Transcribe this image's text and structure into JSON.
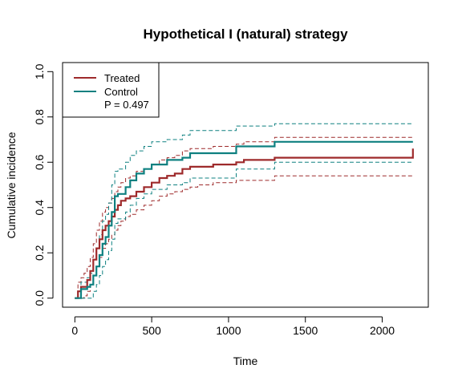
{
  "colors": {
    "treated": "#9E2A2B",
    "control": "#0E8080",
    "axis": "#000000"
  },
  "chart_data": {
    "type": "line",
    "title": "Hypothetical I (natural) strategy",
    "xlabel": "Time",
    "ylabel": "Cumulative incidence",
    "xlim": [
      -80,
      2300
    ],
    "ylim": [
      -0.04,
      1.04
    ],
    "xticks": [
      0,
      500,
      1000,
      1500,
      2000
    ],
    "xtick_labels": [
      "0",
      "500",
      "1000",
      "1500",
      "2000"
    ],
    "yticks": [
      0.0,
      0.2,
      0.4,
      0.6,
      0.8,
      1.0
    ],
    "ytick_labels": [
      "0.0",
      "0.2",
      "0.4",
      "0.6",
      "0.8",
      "1.0"
    ],
    "legend": {
      "position": "top-left",
      "entries": [
        {
          "label": "Treated",
          "series": "treated"
        },
        {
          "label": "Control",
          "series": "control"
        }
      ],
      "annotation": "P = 0.497"
    },
    "series": [
      {
        "name": "Treated",
        "key": "treated",
        "style": "step",
        "ci_style": "dashed",
        "x": [
          0,
          20,
          40,
          60,
          80,
          100,
          120,
          140,
          160,
          180,
          200,
          220,
          240,
          260,
          280,
          300,
          330,
          360,
          400,
          450,
          500,
          550,
          600,
          650,
          700,
          750,
          800,
          900,
          1000,
          1050,
          1100,
          1200,
          1300,
          1500,
          1800,
          2000,
          2200
        ],
        "y": [
          0.0,
          0.03,
          0.05,
          0.05,
          0.08,
          0.12,
          0.17,
          0.22,
          0.26,
          0.3,
          0.32,
          0.34,
          0.36,
          0.39,
          0.41,
          0.43,
          0.44,
          0.45,
          0.47,
          0.49,
          0.51,
          0.53,
          0.54,
          0.55,
          0.57,
          0.58,
          0.58,
          0.59,
          0.59,
          0.6,
          0.61,
          0.61,
          0.62,
          0.62,
          0.62,
          0.62,
          0.66
        ],
        "lower": [
          0.0,
          0.0,
          0.0,
          0.01,
          0.03,
          0.06,
          0.1,
          0.14,
          0.18,
          0.22,
          0.24,
          0.26,
          0.28,
          0.3,
          0.32,
          0.34,
          0.36,
          0.37,
          0.39,
          0.41,
          0.43,
          0.45,
          0.46,
          0.47,
          0.48,
          0.49,
          0.5,
          0.51,
          0.51,
          0.52,
          0.52,
          0.52,
          0.54,
          0.54,
          0.54,
          0.54,
          0.54
        ],
        "upper": [
          0.0,
          0.07,
          0.09,
          0.11,
          0.14,
          0.18,
          0.24,
          0.3,
          0.34,
          0.38,
          0.4,
          0.42,
          0.44,
          0.47,
          0.49,
          0.51,
          0.53,
          0.54,
          0.56,
          0.57,
          0.59,
          0.61,
          0.62,
          0.63,
          0.65,
          0.66,
          0.66,
          0.67,
          0.67,
          0.68,
          0.69,
          0.69,
          0.71,
          0.71,
          0.71,
          0.71,
          0.71
        ]
      },
      {
        "name": "Control",
        "key": "control",
        "style": "step",
        "ci_style": "dashed",
        "x": [
          0,
          40,
          80,
          100,
          120,
          140,
          160,
          180,
          200,
          220,
          240,
          260,
          280,
          330,
          360,
          400,
          450,
          500,
          600,
          700,
          750,
          1000,
          1050,
          1200,
          1300,
          1500,
          2000,
          2200
        ],
        "y": [
          0.0,
          0.04,
          0.05,
          0.06,
          0.1,
          0.14,
          0.19,
          0.24,
          0.27,
          0.32,
          0.38,
          0.45,
          0.46,
          0.49,
          0.52,
          0.55,
          0.57,
          0.59,
          0.61,
          0.62,
          0.64,
          0.64,
          0.67,
          0.67,
          0.69,
          0.69,
          0.69,
          0.69
        ],
        "lower": [
          0.0,
          0.0,
          0.0,
          0.0,
          0.03,
          0.06,
          0.1,
          0.14,
          0.17,
          0.21,
          0.26,
          0.33,
          0.35,
          0.38,
          0.41,
          0.44,
          0.46,
          0.48,
          0.5,
          0.51,
          0.53,
          0.53,
          0.57,
          0.57,
          0.6,
          0.6,
          0.6,
          0.6
        ],
        "upper": [
          0.0,
          0.07,
          0.09,
          0.11,
          0.17,
          0.22,
          0.28,
          0.34,
          0.37,
          0.42,
          0.5,
          0.56,
          0.57,
          0.6,
          0.63,
          0.65,
          0.67,
          0.69,
          0.7,
          0.72,
          0.74,
          0.74,
          0.76,
          0.76,
          0.77,
          0.77,
          0.77,
          0.77
        ]
      }
    ]
  }
}
